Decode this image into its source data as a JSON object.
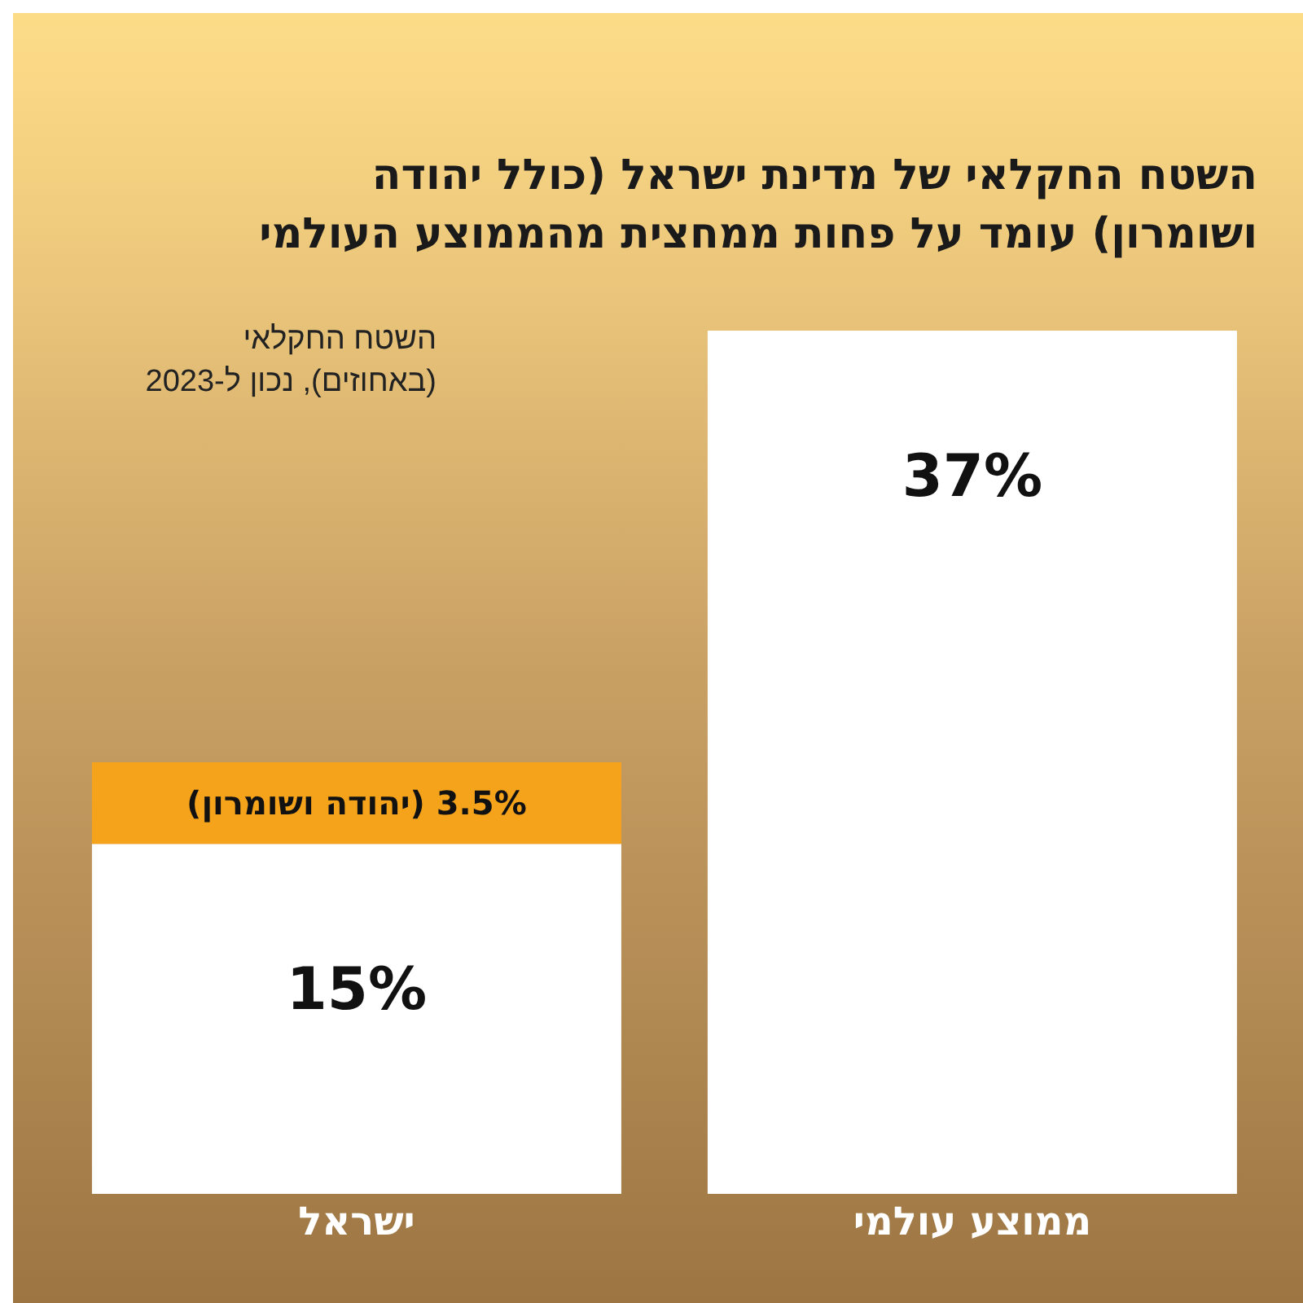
{
  "chart_data": {
    "type": "bar",
    "title": "השטח החקלאי של מדינת ישראל (כולל יהודה ושומרון) עומד על פחות ממחצית מהממוצע העולמי",
    "subtitle": "השטח החקלאי (באחוזים), נכון ל-2023",
    "categories": [
      "ישראל",
      "ממוצע עולמי"
    ],
    "stacked": true,
    "tick_labels": "x",
    "grid": false,
    "legend": false,
    "series": [
      {
        "color": "#ffffff",
        "values": [
          15,
          37
        ],
        "value_labels": [
          "15%",
          "37%"
        ]
      },
      {
        "color": "#f6a31c",
        "values": [
          3.5,
          null
        ],
        "value_labels": [
          "3.5% (יהודה ושומרון)",
          null
        ]
      }
    ]
  }
}
